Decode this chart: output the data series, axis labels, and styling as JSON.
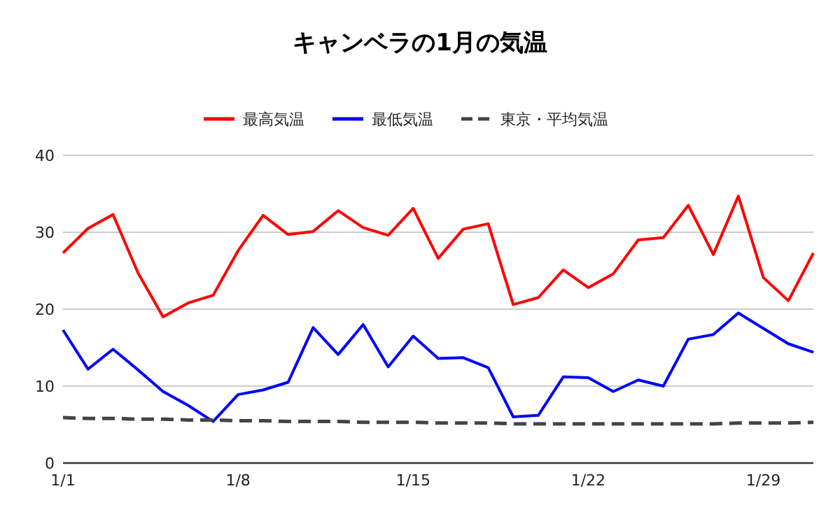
{
  "chart_data": {
    "type": "line",
    "title": "キャンベラの1月の気温",
    "categories": [
      "1/1",
      null,
      null,
      null,
      null,
      null,
      null,
      "1/8",
      null,
      null,
      null,
      null,
      null,
      null,
      "1/15",
      null,
      null,
      null,
      null,
      null,
      null,
      "1/22",
      null,
      null,
      null,
      null,
      null,
      null,
      "1/29",
      null,
      null
    ],
    "series": [
      {
        "name": "最高気温",
        "color": "#ff0000",
        "values": [
          27.3,
          30.5,
          32.3,
          24.7,
          19.0,
          20.8,
          21.8,
          27.6,
          32.2,
          29.7,
          30.1,
          32.8,
          30.6,
          29.6,
          33.1,
          26.6,
          30.4,
          31.1,
          20.6,
          21.5,
          25.1,
          22.8,
          24.6,
          29.0,
          29.3,
          33.5,
          27.1,
          34.7,
          24.1,
          21.1,
          27.3
        ]
      },
      {
        "name": "最低気温",
        "color": "#0000ff",
        "values": [
          17.3,
          12.2,
          14.8,
          12.1,
          9.3,
          7.5,
          5.4,
          8.9,
          9.5,
          10.5,
          17.6,
          14.1,
          18.0,
          12.5,
          16.5,
          13.6,
          13.7,
          12.4,
          6.0,
          6.2,
          11.2,
          11.1,
          9.3,
          10.8,
          10.0,
          16.1,
          16.7,
          19.5,
          17.5,
          15.5,
          14.4
        ]
      },
      {
        "name": "東京・平均気温",
        "color": "#444444",
        "line_style": "dashed",
        "values": [
          5.9,
          5.8,
          5.8,
          5.7,
          5.7,
          5.6,
          5.6,
          5.5,
          5.5,
          5.4,
          5.4,
          5.4,
          5.3,
          5.3,
          5.3,
          5.2,
          5.2,
          5.2,
          5.1,
          5.1,
          5.1,
          5.1,
          5.1,
          5.1,
          5.1,
          5.1,
          5.1,
          5.2,
          5.2,
          5.2,
          5.3
        ]
      }
    ],
    "ylim": [
      0,
      40
    ],
    "yticks": [
      0,
      10,
      20,
      30,
      40
    ],
    "grid": "y",
    "legend": "top"
  }
}
